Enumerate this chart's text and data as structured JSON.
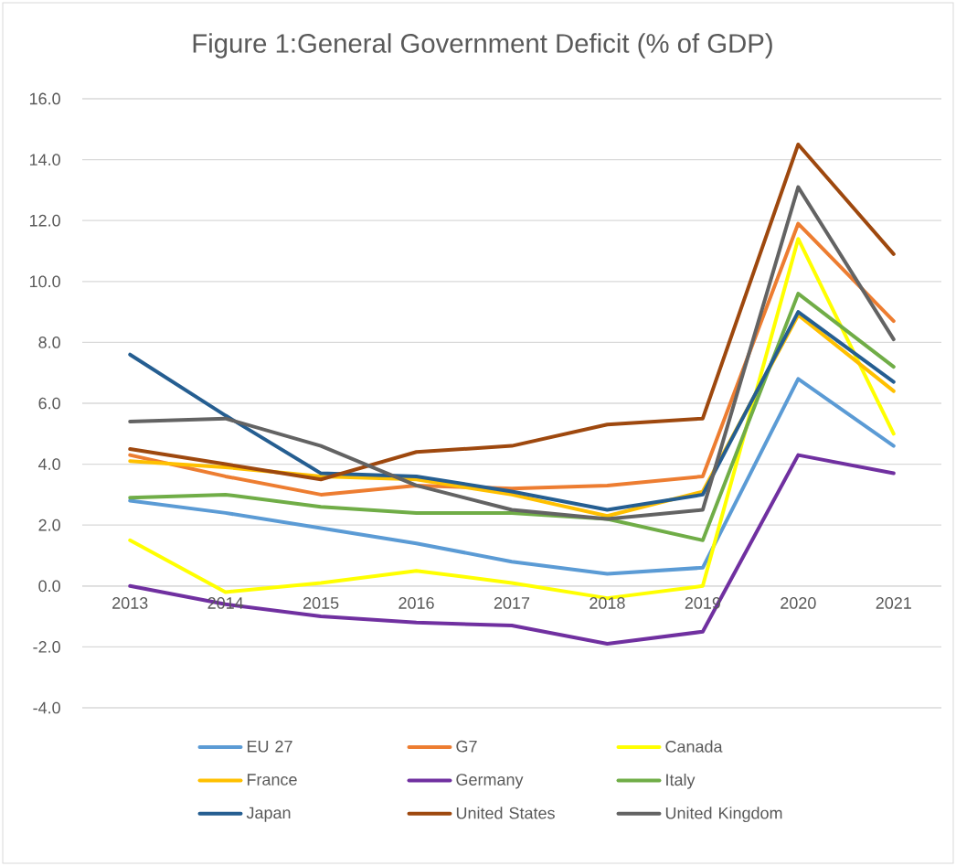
{
  "chart_data": {
    "type": "line",
    "title": "Figure 1:General Government Deficit (% of GDP)",
    "categories": [
      "2013",
      "2014",
      "2015",
      "2016",
      "2017",
      "2018",
      "2019",
      "2020",
      "2021"
    ],
    "series": [
      {
        "name": "EU 27",
        "color": "#5b9bd5",
        "values": [
          2.8,
          2.4,
          1.9,
          1.4,
          0.8,
          0.4,
          0.6,
          6.8,
          4.6
        ]
      },
      {
        "name": "G7",
        "color": "#ed7d31",
        "values": [
          4.3,
          3.6,
          3.0,
          3.3,
          3.2,
          3.3,
          3.6,
          11.9,
          8.7
        ]
      },
      {
        "name": "Canada",
        "color": "#ffff00",
        "values": [
          1.5,
          -0.2,
          0.1,
          0.5,
          0.1,
          -0.4,
          0.0,
          11.4,
          5.0
        ]
      },
      {
        "name": "France",
        "color": "#ffc000",
        "values": [
          4.1,
          3.9,
          3.6,
          3.5,
          3.0,
          2.3,
          3.1,
          8.9,
          6.4
        ]
      },
      {
        "name": "Germany",
        "color": "#7030a0",
        "values": [
          0.0,
          -0.6,
          -1.0,
          -1.2,
          -1.3,
          -1.9,
          -1.5,
          4.3,
          3.7
        ]
      },
      {
        "name": "Italy",
        "color": "#70ad47",
        "values": [
          2.9,
          3.0,
          2.6,
          2.4,
          2.4,
          2.2,
          1.5,
          9.6,
          7.2
        ]
      },
      {
        "name": "Japan",
        "color": "#255e91",
        "values": [
          7.6,
          5.6,
          3.7,
          3.6,
          3.1,
          2.5,
          3.0,
          9.0,
          6.7
        ]
      },
      {
        "name": "United States",
        "color": "#9e480e",
        "values": [
          4.5,
          4.0,
          3.5,
          4.4,
          4.6,
          5.3,
          5.5,
          14.5,
          10.9
        ]
      },
      {
        "name": "United Kingdom",
        "color": "#636363",
        "values": [
          5.4,
          5.5,
          4.6,
          3.3,
          2.5,
          2.2,
          2.5,
          13.1,
          8.1
        ]
      }
    ],
    "ylim": [
      -4,
      16
    ],
    "yticks": [
      {
        "value": -4,
        "label": "-4.0"
      },
      {
        "value": -2,
        "label": "-2.0"
      },
      {
        "value": 0,
        "label": "0.0"
      },
      {
        "value": 2,
        "label": "2.0"
      },
      {
        "value": 4,
        "label": "4.0"
      },
      {
        "value": 6,
        "label": "6.0"
      },
      {
        "value": 8,
        "label": "8.0"
      },
      {
        "value": 10,
        "label": "10.0"
      },
      {
        "value": 12,
        "label": "12.0"
      },
      {
        "value": 14,
        "label": "14.0"
      },
      {
        "value": 16,
        "label": "16.0"
      }
    ],
    "grid": "y",
    "legend": "bottom",
    "marker": "none",
    "line_style": "solid"
  }
}
